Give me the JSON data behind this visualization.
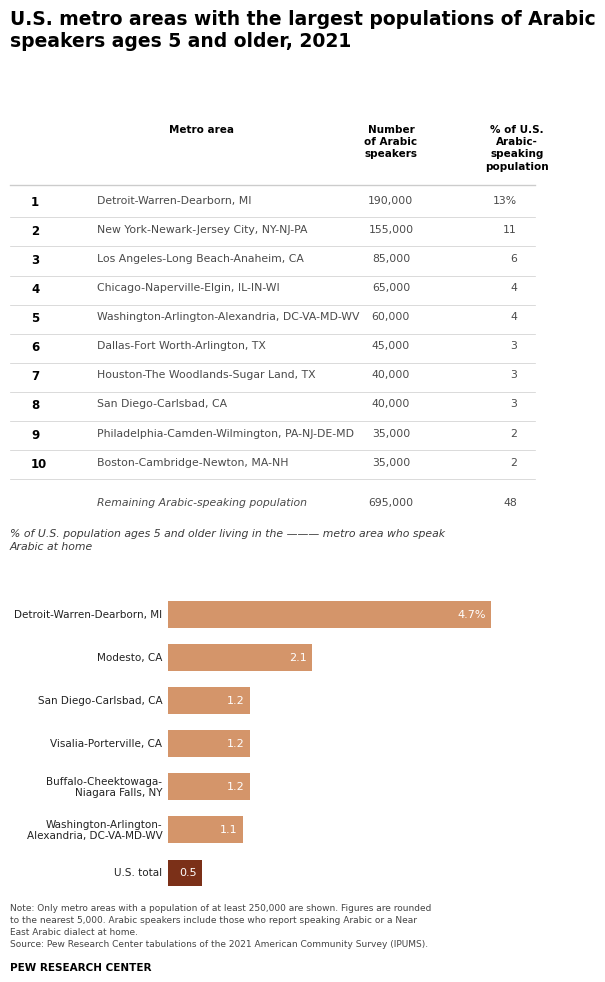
{
  "title": "U.S. metro areas with the largest populations of Arabic\nspeakers ages 5 and older, 2021",
  "title_fontsize": 13.5,
  "background_color": "#ffffff",
  "table": {
    "col_header_metro": "Metro area",
    "col_header_number": "Number\nof Arabic\nspeakers",
    "col_header_pct": "% of U.S.\nArabic-\nspeaking\npopulation",
    "rows": [
      {
        "rank": "1",
        "metro": "Detroit-Warren-Dearborn, MI",
        "number": "190,000",
        "pct": "13%"
      },
      {
        "rank": "2",
        "metro": "New York-Newark-Jersey City, NY-NJ-PA",
        "number": "155,000",
        "pct": "11"
      },
      {
        "rank": "3",
        "metro": "Los Angeles-Long Beach-Anaheim, CA",
        "number": "85,000",
        "pct": "6"
      },
      {
        "rank": "4",
        "metro": "Chicago-Naperville-Elgin, IL-IN-WI",
        "number": "65,000",
        "pct": "4"
      },
      {
        "rank": "5",
        "metro": "Washington-Arlington-Alexandria, DC-VA-MD-WV",
        "number": "60,000",
        "pct": "4"
      },
      {
        "rank": "6",
        "metro": "Dallas-Fort Worth-Arlington, TX",
        "number": "45,000",
        "pct": "3"
      },
      {
        "rank": "7",
        "metro": "Houston-The Woodlands-Sugar Land, TX",
        "number": "40,000",
        "pct": "3"
      },
      {
        "rank": "8",
        "metro": "San Diego-Carlsbad, CA",
        "number": "40,000",
        "pct": "3"
      },
      {
        "rank": "9",
        "metro": "Philadelphia-Camden-Wilmington, PA-NJ-DE-MD",
        "number": "35,000",
        "pct": "2"
      },
      {
        "rank": "10",
        "metro": "Boston-Cambridge-Newton, MA-NH",
        "number": "35,000",
        "pct": "2"
      }
    ],
    "remaining_label": "Remaining Arabic-speaking population",
    "remaining_number": "695,000",
    "remaining_pct": "48"
  },
  "bar_subtitle": "% of U.S. population ages 5 and older living in the ——— metro area who speak\nArabic at home",
  "bars": {
    "labels": [
      "Detroit-Warren-Dearborn, MI",
      "Modesto, CA",
      "San Diego-Carlsbad, CA",
      "Visalia-Porterville, CA",
      "Buffalo-Cheektowaga-\nNiagara Falls, NY",
      "Washington-Arlington-\nAlexandria, DC-VA-MD-WV",
      "U.S. total"
    ],
    "values": [
      4.7,
      2.1,
      1.2,
      1.2,
      1.2,
      1.1,
      0.5
    ],
    "value_labels": [
      "4.7%",
      "2.1",
      "1.2",
      "1.2",
      "1.2",
      "1.1",
      "0.5"
    ],
    "colors": [
      "#d4956a",
      "#d4956a",
      "#d4956a",
      "#d4956a",
      "#d4956a",
      "#d4956a",
      "#7b3018"
    ]
  },
  "note_text": "Note: Only metro areas with a population of at least 250,000 are shown. Figures are rounded\nto the nearest 5,000. Arabic speakers include those who report speaking Arabic or a Near\nEast Arabic dialect at home.\nSource: Pew Research Center tabulations of the 2021 American Community Survey (IPUMS).",
  "footer": "PEW RESEARCH CENTER",
  "line_color": "#cccccc",
  "rank_color": "#000000",
  "metro_color": "#4a4a4a",
  "number_color": "#4a4a4a",
  "pct_color": "#4a4a4a"
}
